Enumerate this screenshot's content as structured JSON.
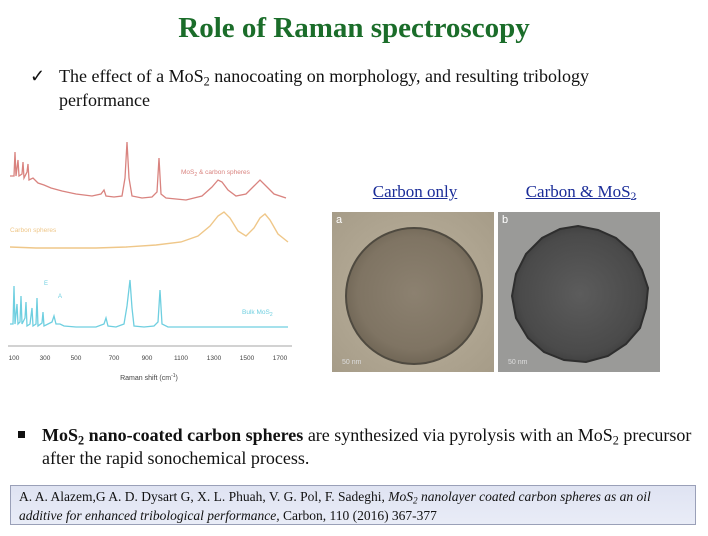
{
  "title": "Role of Raman spectroscopy",
  "check": {
    "mark": "✓",
    "pre": "The effect of a MoS",
    "sub": "2",
    "post": " nanocoating on morphology, and resulting tribology performance"
  },
  "spectra": {
    "series_labels": {
      "top_pre": "MoS",
      "top_sub": "2",
      "top_post": " & carbon spheres",
      "middle": "Carbon spheres",
      "bottom_pre": "Bulk MoS",
      "bottom_sub": "2",
      "peak_e": "E",
      "peak_a": "A"
    },
    "ticks": [
      "100",
      "300",
      "500",
      "700",
      "900",
      "1100",
      "1300",
      "1500",
      "1700"
    ],
    "xlabel": "Raman shift (cm",
    "xlabel_sup": "-1",
    "xlabel_end": ")",
    "colors": {
      "top": "#d9837f",
      "middle": "#efc789",
      "bottom": "#6fcfe0"
    }
  },
  "images": [
    {
      "label": "Carbon only",
      "letter": "a",
      "scale": "50 nm"
    },
    {
      "label_pre": "Carbon & MoS",
      "label_sub": "2",
      "letter": "b",
      "scale": "50 nm"
    }
  ],
  "bullet": {
    "bold_pre": "MoS",
    "bold_sub": "2",
    "bold_post": " nano-coated carbon spheres",
    "text_pre": " are synthesized via pyrolysis with an MoS",
    "text_sub": "2",
    "text_post": " precursor after the rapid sonochemical process."
  },
  "citation": {
    "authors": "A. A. Alazem,G A. D. Dysart G, X. L. Phuah, V. G. Pol, F. Sadeghi, ",
    "title_pre": "MoS",
    "title_sub": "2",
    "title_post": " nanolayer coated carbon spheres as an oil additive for enhanced tribological performance,",
    "journal": " Carbon, 110 (2016) 367-377"
  },
  "colors": {
    "title": "#1b6d2a",
    "link": "#1a2c98",
    "citation_bg": "#e3e6f4"
  }
}
